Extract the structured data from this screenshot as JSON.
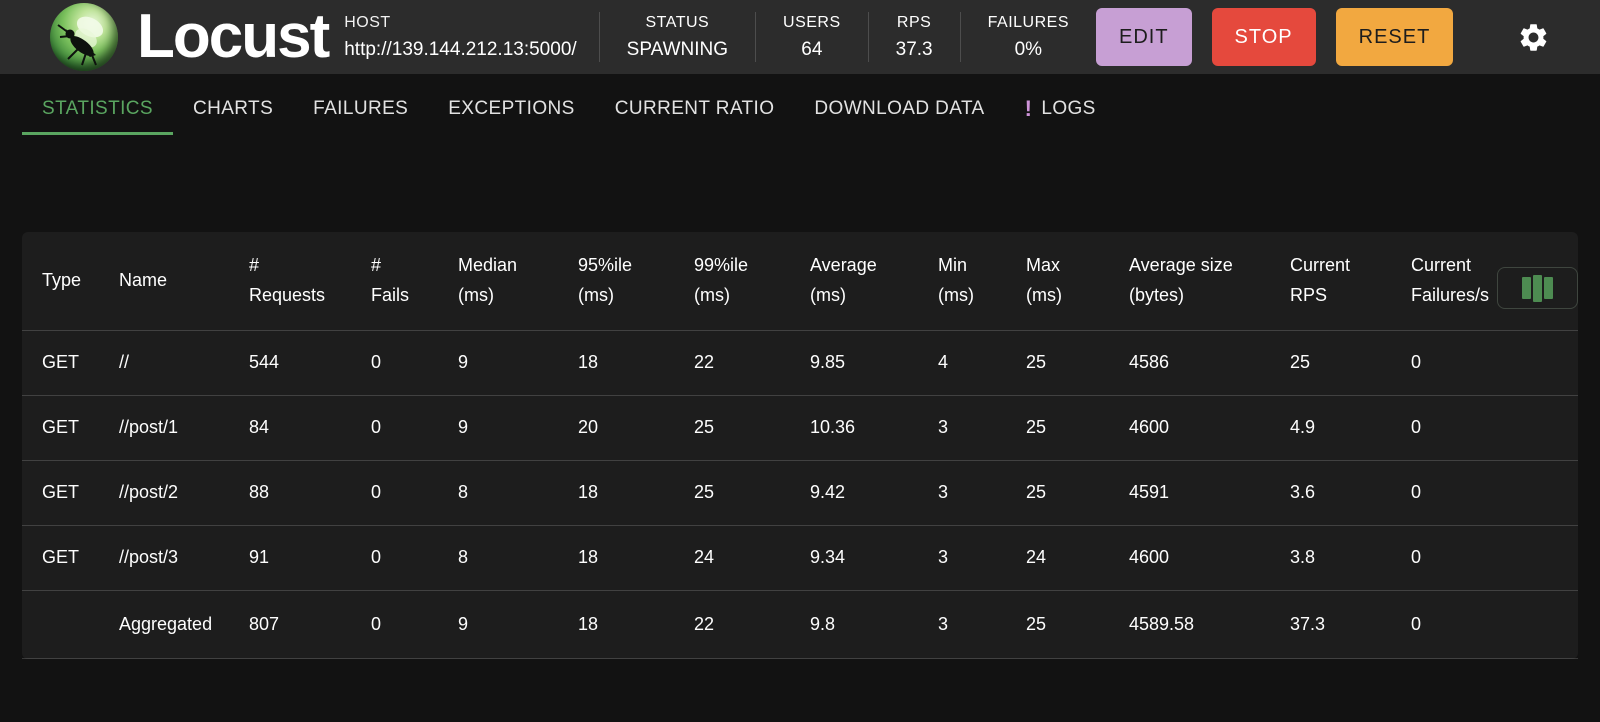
{
  "header": {
    "brand": "Locust",
    "host_label": "HOST",
    "host_url": "http://139.144.212.13:5000/",
    "stats": [
      {
        "id": "status",
        "label": "STATUS",
        "value": "SPAWNING"
      },
      {
        "id": "users",
        "label": "USERS",
        "value": "64"
      },
      {
        "id": "rps",
        "label": "RPS",
        "value": "37.3"
      },
      {
        "id": "failures",
        "label": "FAILURES",
        "value": "0%"
      }
    ],
    "buttons": [
      {
        "id": "edit",
        "label": "EDIT",
        "bg": "#c79fd4",
        "fg": "#1d1d1d"
      },
      {
        "id": "stop",
        "label": "STOP",
        "bg": "#e5493d",
        "fg": "#ffffff"
      },
      {
        "id": "reset",
        "label": "RESET",
        "bg": "#f2a840",
        "fg": "#1d1d1d"
      }
    ],
    "settings_icon": "gear-icon"
  },
  "tabs": [
    {
      "id": "statistics",
      "label": "STATISTICS",
      "active": true
    },
    {
      "id": "charts",
      "label": "CHARTS"
    },
    {
      "id": "failures",
      "label": "FAILURES"
    },
    {
      "id": "exceptions",
      "label": "EXCEPTIONS"
    },
    {
      "id": "current-ratio",
      "label": "CURRENT RATIO"
    },
    {
      "id": "download-data",
      "label": "DOWNLOAD DATA"
    },
    {
      "id": "logs",
      "label": "LOGS",
      "badge": "!"
    }
  ],
  "column_selector": {
    "icon": "view-columns-icon"
  },
  "table": {
    "columns": [
      "Type",
      "Name",
      "#\nRequests",
      "#\nFails",
      "Median\n(ms)",
      "95%ile\n(ms)",
      "99%ile\n(ms)",
      "Average\n(ms)",
      "Min\n(ms)",
      "Max\n(ms)",
      "Average size\n(bytes)",
      "Current\nRPS",
      "Current\nFailures/s"
    ],
    "rows": [
      [
        "GET",
        "//",
        "544",
        "0",
        "9",
        "18",
        "22",
        "9.85",
        "4",
        "25",
        "4586",
        "25",
        "0"
      ],
      [
        "GET",
        "//post/1",
        "84",
        "0",
        "9",
        "20",
        "25",
        "10.36",
        "3",
        "25",
        "4600",
        "4.9",
        "0"
      ],
      [
        "GET",
        "//post/2",
        "88",
        "0",
        "8",
        "18",
        "25",
        "9.42",
        "3",
        "25",
        "4591",
        "3.6",
        "0"
      ],
      [
        "GET",
        "//post/3",
        "91",
        "0",
        "8",
        "18",
        "24",
        "9.34",
        "3",
        "24",
        "4600",
        "3.8",
        "0"
      ]
    ],
    "aggregated_row": [
      "",
      "Aggregated",
      "807",
      "0",
      "9",
      "18",
      "22",
      "9.8",
      "3",
      "25",
      "4589.58",
      "37.3",
      "0"
    ]
  },
  "colors": {
    "accent_green": "#5aa560",
    "badge_purple": "#ce93d8",
    "edit_bg": "#c79fd4",
    "stop_bg": "#e5493d",
    "reset_bg": "#f2a840",
    "column_icon_green": "#4d8b51"
  }
}
